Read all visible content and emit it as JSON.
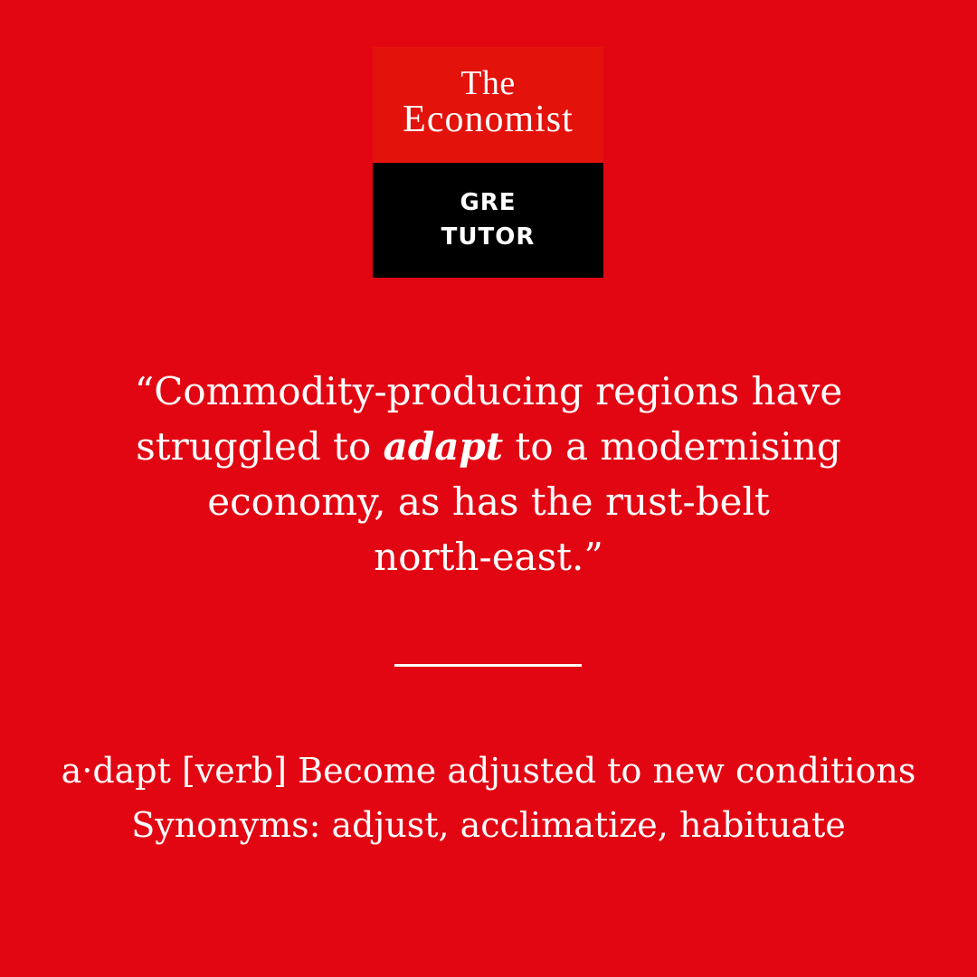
{
  "brand": {
    "the": "The",
    "economist": "Economist",
    "gre": "GRE",
    "tutor": "TUTOR"
  },
  "quote": {
    "line1": "“Commodity-producing regions have",
    "line2_before": "struggled to ",
    "keyword": "adapt",
    "line2_after": " to a modernising",
    "line3": "economy, as has the rust-belt",
    "line4": "north-east.”"
  },
  "definition": {
    "line1": "a·dapt [verb] Become adjusted to new conditions",
    "line2": "Synonyms: adjust, acclimatize, habituate"
  },
  "colors": {
    "background": "#e20612",
    "logo_red": "#e3120b",
    "logo_black": "#000000",
    "text": "#ffffff"
  }
}
